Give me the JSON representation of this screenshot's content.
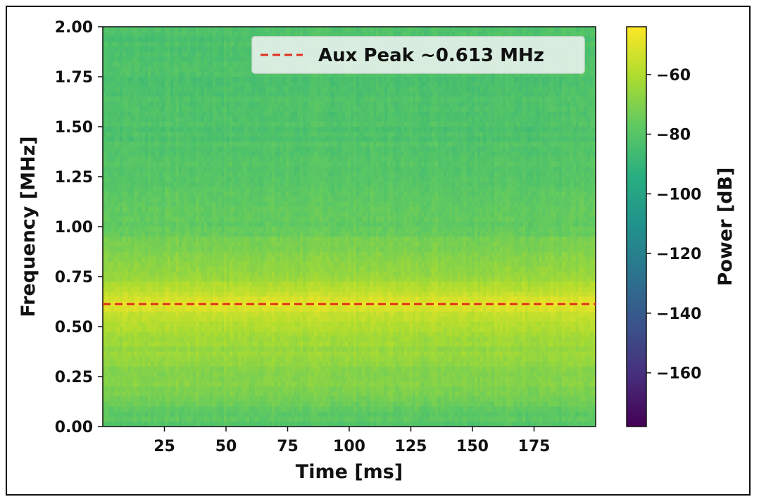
{
  "chart_data": {
    "type": "heatmap",
    "title": "",
    "xlabel": "Time [ms]",
    "ylabel": "Frequency [MHz]",
    "xlim": [
      0,
      200
    ],
    "ylim": [
      0,
      2.0
    ],
    "x_ticks": [
      25,
      50,
      75,
      100,
      125,
      150,
      175
    ],
    "x_tick_labels": [
      "25",
      "50",
      "75",
      "100",
      "125",
      "150",
      "175"
    ],
    "y_ticks": [
      0,
      0.25,
      0.5,
      0.75,
      1.0,
      1.25,
      1.5,
      1.75,
      2.0
    ],
    "y_tick_labels": [
      "0.00",
      "0.25",
      "0.50",
      "0.75",
      "1.00",
      "1.25",
      "1.50",
      "1.75",
      "2.00"
    ],
    "colormap": "viridis",
    "colorbar": {
      "label": "Power [dB]",
      "range": [
        -178,
        -44
      ],
      "ticks": [
        -60,
        -80,
        -100,
        -120,
        -140,
        -160
      ],
      "tick_labels": [
        "−60",
        "−80",
        "−100",
        "−120",
        "−140",
        "−160"
      ]
    },
    "power_profile_db": [
      {
        "frequency_mhz": 0.0,
        "power_db": -80
      },
      {
        "frequency_mhz": 0.1,
        "power_db": -76
      },
      {
        "frequency_mhz": 0.2,
        "power_db": -70
      },
      {
        "frequency_mhz": 0.35,
        "power_db": -66
      },
      {
        "frequency_mhz": 0.5,
        "power_db": -61
      },
      {
        "frequency_mhz": 0.613,
        "power_db": -50
      },
      {
        "frequency_mhz": 0.75,
        "power_db": -64
      },
      {
        "frequency_mhz": 1.0,
        "power_db": -76
      },
      {
        "frequency_mhz": 1.25,
        "power_db": -80
      },
      {
        "frequency_mhz": 1.5,
        "power_db": -82
      },
      {
        "frequency_mhz": 2.0,
        "power_db": -83
      }
    ],
    "annotations": [
      {
        "type": "hline",
        "y": 0.613,
        "style": "dashed",
        "color": "#e0301e",
        "label": "Aux Peak ~0.613 MHz"
      }
    ],
    "legend": {
      "placement": "top-right",
      "entries": [
        "Aux Peak ~0.613 MHz"
      ]
    },
    "grid": false
  }
}
